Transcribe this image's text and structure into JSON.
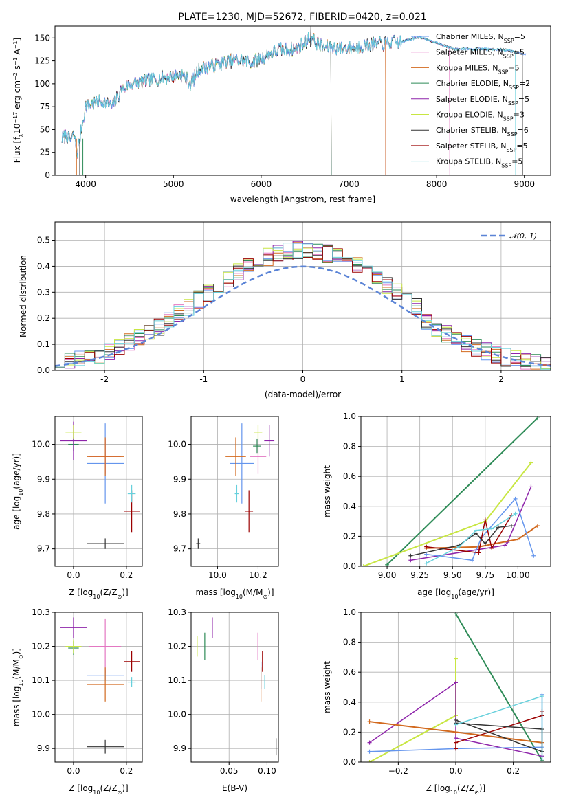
{
  "title": "PLATE=1230, MJD=52672, FIBERID=0420, z=0.021",
  "colors": {
    "cm": "#6495ed",
    "sm": "#e377c2",
    "km": "#d2691e",
    "ce": "#2e8b57",
    "se": "#8e24aa",
    "ke": "#c8e642",
    "cs": "#333333",
    "ss": "#9b0000",
    "ks": "#67d0dc",
    "norm": "#5b84d6",
    "grid": "#b0b0b0"
  },
  "chart_data": [
    {
      "id": "spectrum",
      "type": "line",
      "xlabel": "wavelength [Angstrom, rest frame]",
      "ylabel": "Flux [f",
      "xlim": [
        3650,
        9300
      ],
      "ylim": [
        0,
        163
      ],
      "xticks": [
        4000,
        5000,
        6000,
        7000,
        8000,
        9000
      ],
      "yticks": [
        0,
        25,
        50,
        75,
        100,
        125,
        150
      ],
      "spectrum_anchors": [
        [
          3730,
          40
        ],
        [
          3780,
          44
        ],
        [
          3830,
          38
        ],
        [
          3870,
          45
        ],
        [
          3900,
          22
        ],
        [
          3950,
          50
        ],
        [
          4000,
          76
        ],
        [
          4100,
          79
        ],
        [
          4200,
          82
        ],
        [
          4300,
          75
        ],
        [
          4400,
          92
        ],
        [
          4500,
          100
        ],
        [
          4700,
          103
        ],
        [
          4900,
          107
        ],
        [
          5100,
          110
        ],
        [
          5200,
          100
        ],
        [
          5300,
          117
        ],
        [
          5500,
          121
        ],
        [
          5700,
          126
        ],
        [
          5900,
          124
        ],
        [
          6000,
          128
        ],
        [
          6200,
          137
        ],
        [
          6400,
          138
        ],
        [
          6560,
          150
        ],
        [
          6700,
          140
        ],
        [
          7000,
          139
        ],
        [
          7300,
          143
        ],
        [
          7600,
          146
        ],
        [
          7800,
          151
        ],
        [
          7900,
          148
        ],
        [
          8200,
          138
        ],
        [
          8500,
          138
        ],
        [
          8800,
          137
        ],
        [
          9000,
          132
        ]
      ],
      "legend": [
        {
          "label": "Chabrier MILES, N",
          "sub": "SSP",
          "val": "=5",
          "color": "cm",
          "end": 9020
        },
        {
          "label": "Salpeter MILES, N",
          "sub": "SSP",
          "val": "=5",
          "color": "sm",
          "end": 8150
        },
        {
          "label": "Kroupa MILES, N",
          "sub": "SSP",
          "val": "=5",
          "color": "km",
          "end": 7420
        },
        {
          "label": "Chabrier ELODIE, N",
          "sub": "SSP",
          "val": "=2",
          "color": "ce",
          "end": 6800
        },
        {
          "label": "Salpeter ELODIE, N",
          "sub": "SSP",
          "val": "=5",
          "color": "se",
          "end": 6800
        },
        {
          "label": "Kroupa ELODIE, N",
          "sub": "SSP",
          "val": "=3",
          "color": "ke",
          "end": 6800
        },
        {
          "label": "Chabrier STELIB, N",
          "sub": "SSP",
          "val": "=6",
          "color": "cs",
          "end": 8980
        },
        {
          "label": "Salpeter STELIB, N",
          "sub": "SSP",
          "val": "=5",
          "color": "ss",
          "end": 7420
        },
        {
          "label": "Kroupa STELIB, N",
          "sub": "SSP",
          "val": "=5",
          "color": "ks",
          "end": 8900
        }
      ]
    },
    {
      "id": "histogram",
      "type": "bar",
      "xlabel": "(data-model)/error",
      "ylabel": "Normed distribution",
      "xlim": [
        -2.5,
        2.5
      ],
      "ylim": [
        0,
        0.57
      ],
      "xticks": [
        -2,
        -1,
        0,
        1,
        2
      ],
      "yticks": [
        0.0,
        0.1,
        0.2,
        0.3,
        0.4,
        0.5
      ],
      "legend_label": "𝒩(0, 1)",
      "bin_width": 0.1
    },
    {
      "id": "age-vs-z",
      "type": "scatter",
      "xlabel": "Z [log",
      "ylabel": "age  [log",
      "xlim": [
        -0.07,
        0.26
      ],
      "ylim": [
        9.65,
        10.08
      ],
      "xticks": [
        -0.0,
        0.2
      ],
      "xticklabels": [
        "0.0",
        "0.2"
      ],
      "yticks": [
        9.7,
        9.8,
        9.9,
        10.0
      ],
      "points": [
        {
          "c": "cm",
          "x": 0.12,
          "y": 9.945,
          "ex": 0.07,
          "ey": 0.115
        },
        {
          "c": "sm",
          "x": 0.12,
          "y": 9.965,
          "ex": 0.06,
          "ey": 0.05
        },
        {
          "c": "km",
          "x": 0.12,
          "y": 9.965,
          "ex": 0.07,
          "ey": 0.055
        },
        {
          "c": "ce",
          "x": 0.0,
          "y": 10.0,
          "ex": 0.02,
          "ey": 0.02
        },
        {
          "c": "se",
          "x": 0.0,
          "y": 10.01,
          "ex": 0.05,
          "ey": 0.055
        },
        {
          "c": "ke",
          "x": 0.0,
          "y": 10.035,
          "ex": 0.03,
          "ey": 0.02
        },
        {
          "c": "cs",
          "x": 0.12,
          "y": 9.715,
          "ex": 0.07,
          "ey": 0.015
        },
        {
          "c": "ss",
          "x": 0.22,
          "y": 9.808,
          "ex": 0.03,
          "ey": 0.06
        },
        {
          "c": "ks",
          "x": 0.22,
          "y": 9.858,
          "ex": 0.015,
          "ey": 0.025
        }
      ]
    },
    {
      "id": "age-vs-mass",
      "type": "scatter",
      "xlabel": "mass [log",
      "ylabel": "",
      "xlim": [
        9.87,
        10.3
      ],
      "ylim": [
        9.65,
        10.08
      ],
      "xticks": [
        10.0,
        10.2
      ],
      "xticklabels": [
        "10.0",
        "10.2"
      ],
      "yticks": [
        9.7,
        9.8,
        9.9,
        10.0
      ],
      "points": [
        {
          "c": "cm",
          "x": 10.12,
          "y": 9.945,
          "ex": 0.06,
          "ey": 0.115
        },
        {
          "c": "sm",
          "x": 10.2,
          "y": 9.965,
          "ex": 0.04,
          "ey": 0.05
        },
        {
          "c": "km",
          "x": 10.09,
          "y": 9.965,
          "ex": 0.05,
          "ey": 0.055
        },
        {
          "c": "ce",
          "x": 10.195,
          "y": 9.995,
          "ex": 0.02,
          "ey": 0.02
        },
        {
          "c": "se",
          "x": 10.255,
          "y": 10.01,
          "ex": 0.025,
          "ey": 0.045
        },
        {
          "c": "ke",
          "x": 10.2,
          "y": 10.035,
          "ex": 0.02,
          "ey": 0.02
        },
        {
          "c": "cs",
          "x": 9.905,
          "y": 9.715,
          "ex": 0.01,
          "ey": 0.015
        },
        {
          "c": "ss",
          "x": 10.155,
          "y": 9.808,
          "ex": 0.02,
          "ey": 0.06
        },
        {
          "c": "ks",
          "x": 10.095,
          "y": 9.858,
          "ex": 0.01,
          "ey": 0.025
        }
      ]
    },
    {
      "id": "weight-vs-age",
      "type": "line",
      "xlabel": "age  [log",
      "ylabel": "mass weight",
      "xlim": [
        8.8,
        10.25
      ],
      "ylim": [
        0,
        1
      ],
      "xticks": [
        9.0,
        9.25,
        9.5,
        9.75,
        10.0
      ],
      "xticklabels": [
        "9.00",
        "9.25",
        "9.50",
        "9.75",
        "10.00"
      ],
      "yticks": [
        0.0,
        0.2,
        0.4,
        0.6,
        0.8,
        1.0
      ],
      "series": [
        {
          "c": "ce",
          "pts": [
            [
              9.0,
              0.01
            ],
            [
              10.15,
              0.99
            ]
          ],
          "w": 2
        },
        {
          "c": "ke",
          "pts": [
            [
              8.82,
              0.0
            ],
            [
              9.75,
              0.3
            ],
            [
              10.1,
              0.69
            ]
          ],
          "w": 2
        },
        {
          "c": "se",
          "pts": [
            [
              9.18,
              0.04
            ],
            [
              9.9,
              0.14
            ],
            [
              9.92,
              0.16
            ],
            [
              10.1,
              0.53
            ]
          ],
          "w": 1.5
        },
        {
          "c": "km",
          "pts": [
            [
              9.3,
              0.12
            ],
            [
              9.7,
              0.13
            ],
            [
              10.0,
              0.18
            ],
            [
              10.15,
              0.27
            ]
          ],
          "w": 2
        },
        {
          "c": "cm",
          "pts": [
            [
              9.3,
              0.08
            ],
            [
              9.65,
              0.04
            ],
            [
              9.72,
              0.19
            ],
            [
              9.98,
              0.45
            ],
            [
              10.12,
              0.07
            ]
          ],
          "w": 1.5
        },
        {
          "c": "ss",
          "pts": [
            [
              9.3,
              0.13
            ],
            [
              9.7,
              0.09
            ],
            [
              9.75,
              0.31
            ],
            [
              9.8,
              0.12
            ],
            [
              9.95,
              0.34
            ]
          ],
          "w": 1.5
        },
        {
          "c": "cs",
          "pts": [
            [
              9.18,
              0.07
            ],
            [
              9.55,
              0.14
            ],
            [
              9.68,
              0.22
            ],
            [
              9.75,
              0.15
            ],
            [
              9.85,
              0.26
            ],
            [
              9.95,
              0.27
            ]
          ],
          "w": 1.5
        },
        {
          "c": "ks",
          "pts": [
            [
              9.3,
              0.02
            ],
            [
              9.55,
              0.13
            ],
            [
              9.68,
              0.24
            ],
            [
              9.8,
              0.25
            ],
            [
              9.98,
              0.35
            ]
          ],
          "w": 1.5
        }
      ]
    },
    {
      "id": "mass-vs-z",
      "type": "scatter",
      "xlabel": "Z [log",
      "ylabel": "mass [log",
      "xlim": [
        -0.07,
        0.26
      ],
      "ylim": [
        9.86,
        10.3
      ],
      "xticks": [
        -0.0,
        0.2
      ],
      "xticklabels": [
        "0.0",
        "0.2"
      ],
      "yticks": [
        9.9,
        10.0,
        10.1,
        10.2,
        10.3
      ],
      "points": [
        {
          "c": "cm",
          "x": 0.12,
          "y": 10.115,
          "ex": 0.07,
          "ey": 0.015
        },
        {
          "c": "sm",
          "x": 0.12,
          "y": 10.2,
          "ex": 0.06,
          "ey": 0.08
        },
        {
          "c": "km",
          "x": 0.12,
          "y": 10.088,
          "ex": 0.07,
          "ey": 0.05
        },
        {
          "c": "ce",
          "x": 0.0,
          "y": 10.195,
          "ex": 0.02,
          "ey": 0.02
        },
        {
          "c": "se",
          "x": 0.0,
          "y": 10.255,
          "ex": 0.05,
          "ey": 0.03
        },
        {
          "c": "ke",
          "x": 0.0,
          "y": 10.2,
          "ex": 0.03,
          "ey": 0.02
        },
        {
          "c": "cs",
          "x": 0.12,
          "y": 9.905,
          "ex": 0.07,
          "ey": 0.02
        },
        {
          "c": "ss",
          "x": 0.22,
          "y": 10.155,
          "ex": 0.03,
          "ey": 0.03
        },
        {
          "c": "ks",
          "x": 0.22,
          "y": 10.095,
          "ex": 0.015,
          "ey": 0.015
        }
      ]
    },
    {
      "id": "mass-vs-ebv",
      "type": "scatter",
      "xlabel": "E(B-V)",
      "ylabel": "",
      "xlim": [
        0.0,
        0.115
      ],
      "ylim": [
        9.86,
        10.3
      ],
      "xticks": [
        0.05,
        0.1
      ],
      "xticklabels": [
        "0.05",
        "0.10"
      ],
      "yticks": [
        9.9,
        10.0,
        10.1,
        10.2,
        10.3
      ],
      "points": [
        {
          "c": "cm",
          "x": 0.092,
          "y": 10.115,
          "ex": 0.0,
          "ey": 0.04
        },
        {
          "c": "sm",
          "x": 0.088,
          "y": 10.2,
          "ex": 0.0,
          "ey": 0.04
        },
        {
          "c": "km",
          "x": 0.092,
          "y": 10.088,
          "ex": 0.0,
          "ey": 0.05
        },
        {
          "c": "ce",
          "x": 0.018,
          "y": 10.2,
          "ex": 0.0,
          "ey": 0.04
        },
        {
          "c": "se",
          "x": 0.028,
          "y": 10.255,
          "ex": 0.0,
          "ey": 0.03
        },
        {
          "c": "ke",
          "x": 0.008,
          "y": 10.2,
          "ex": 0.0,
          "ey": 0.03
        },
        {
          "c": "cs",
          "x": 0.112,
          "y": 9.905,
          "ex": 0.0,
          "ey": 0.025
        },
        {
          "c": "ss",
          "x": 0.094,
          "y": 10.155,
          "ex": 0.0,
          "ey": 0.03
        },
        {
          "c": "ks",
          "x": 0.097,
          "y": 10.095,
          "ex": 0.0,
          "ey": 0.02
        }
      ]
    },
    {
      "id": "weight-vs-z",
      "type": "line",
      "xlabel": "Z [log",
      "ylabel": "mass weight",
      "xlim": [
        -0.33,
        0.33
      ],
      "ylim": [
        0,
        1
      ],
      "xticks": [
        -0.2,
        0.0,
        0.2
      ],
      "xticklabels": [
        "−0.2",
        "0.0",
        "0.2"
      ],
      "yticks": [
        0.0,
        0.2,
        0.4,
        0.6,
        0.8,
        1.0
      ],
      "series": [
        {
          "c": "ce",
          "pts": [
            [
              0.0,
              0.99
            ],
            [
              0.3,
              0.01
            ]
          ],
          "w": 2
        },
        {
          "c": "ke",
          "pts": [
            [
              -0.3,
              0.0
            ],
            [
              0.0,
              0.31
            ],
            [
              0.0,
              0.69
            ]
          ],
          "w": 2
        },
        {
          "c": "se",
          "pts": [
            [
              -0.3,
              0.13
            ],
            [
              0.0,
              0.53
            ],
            [
              0.0,
              0.16
            ],
            [
              0.3,
              0.04
            ]
          ],
          "w": 1.5
        },
        {
          "c": "km",
          "pts": [
            [
              -0.3,
              0.27
            ],
            [
              0.0,
              0.2
            ],
            [
              0.3,
              0.13
            ]
          ],
          "w": 2
        },
        {
          "c": "cm",
          "pts": [
            [
              -0.3,
              0.07
            ],
            [
              0.0,
              0.09
            ],
            [
              0.3,
              0.1
            ],
            [
              0.3,
              0.45
            ]
          ],
          "w": 1.5
        },
        {
          "c": "ss",
          "pts": [
            [
              0.0,
              0.09
            ],
            [
              0.0,
              0.13
            ],
            [
              0.3,
              0.31
            ],
            [
              0.3,
              0.34
            ]
          ],
          "w": 1.5
        },
        {
          "c": "cs",
          "pts": [
            [
              0.0,
              0.28
            ],
            [
              0.3,
              0.07
            ],
            [
              0.3,
              0.22
            ],
            [
              0.0,
              0.26
            ]
          ],
          "w": 1.5
        },
        {
          "c": "ks",
          "pts": [
            [
              0.0,
              0.25
            ],
            [
              0.3,
              0.44
            ],
            [
              0.3,
              0.02
            ]
          ],
          "w": 1.5
        }
      ]
    }
  ],
  "units": {
    "flux_unit_a": "λ",
    "flux_unit_b": "10",
    "flux_unit_c": "−17",
    "flux_unit_d": " erg cm",
    "flux_unit_e": "−2",
    "flux_unit_f": " s",
    "flux_unit_g": "−1",
    "flux_unit_h": " A",
    "flux_unit_i": "−1",
    "flux_unit_j": "]",
    "log10": "10",
    "z_ratio": "(Z/Z",
    "z_sun": "⊙",
    "z_close": ")]",
    "age_ratio": "(age/yr)]",
    "mass_ratio": "(M/M",
    "mass_close": ")]"
  }
}
